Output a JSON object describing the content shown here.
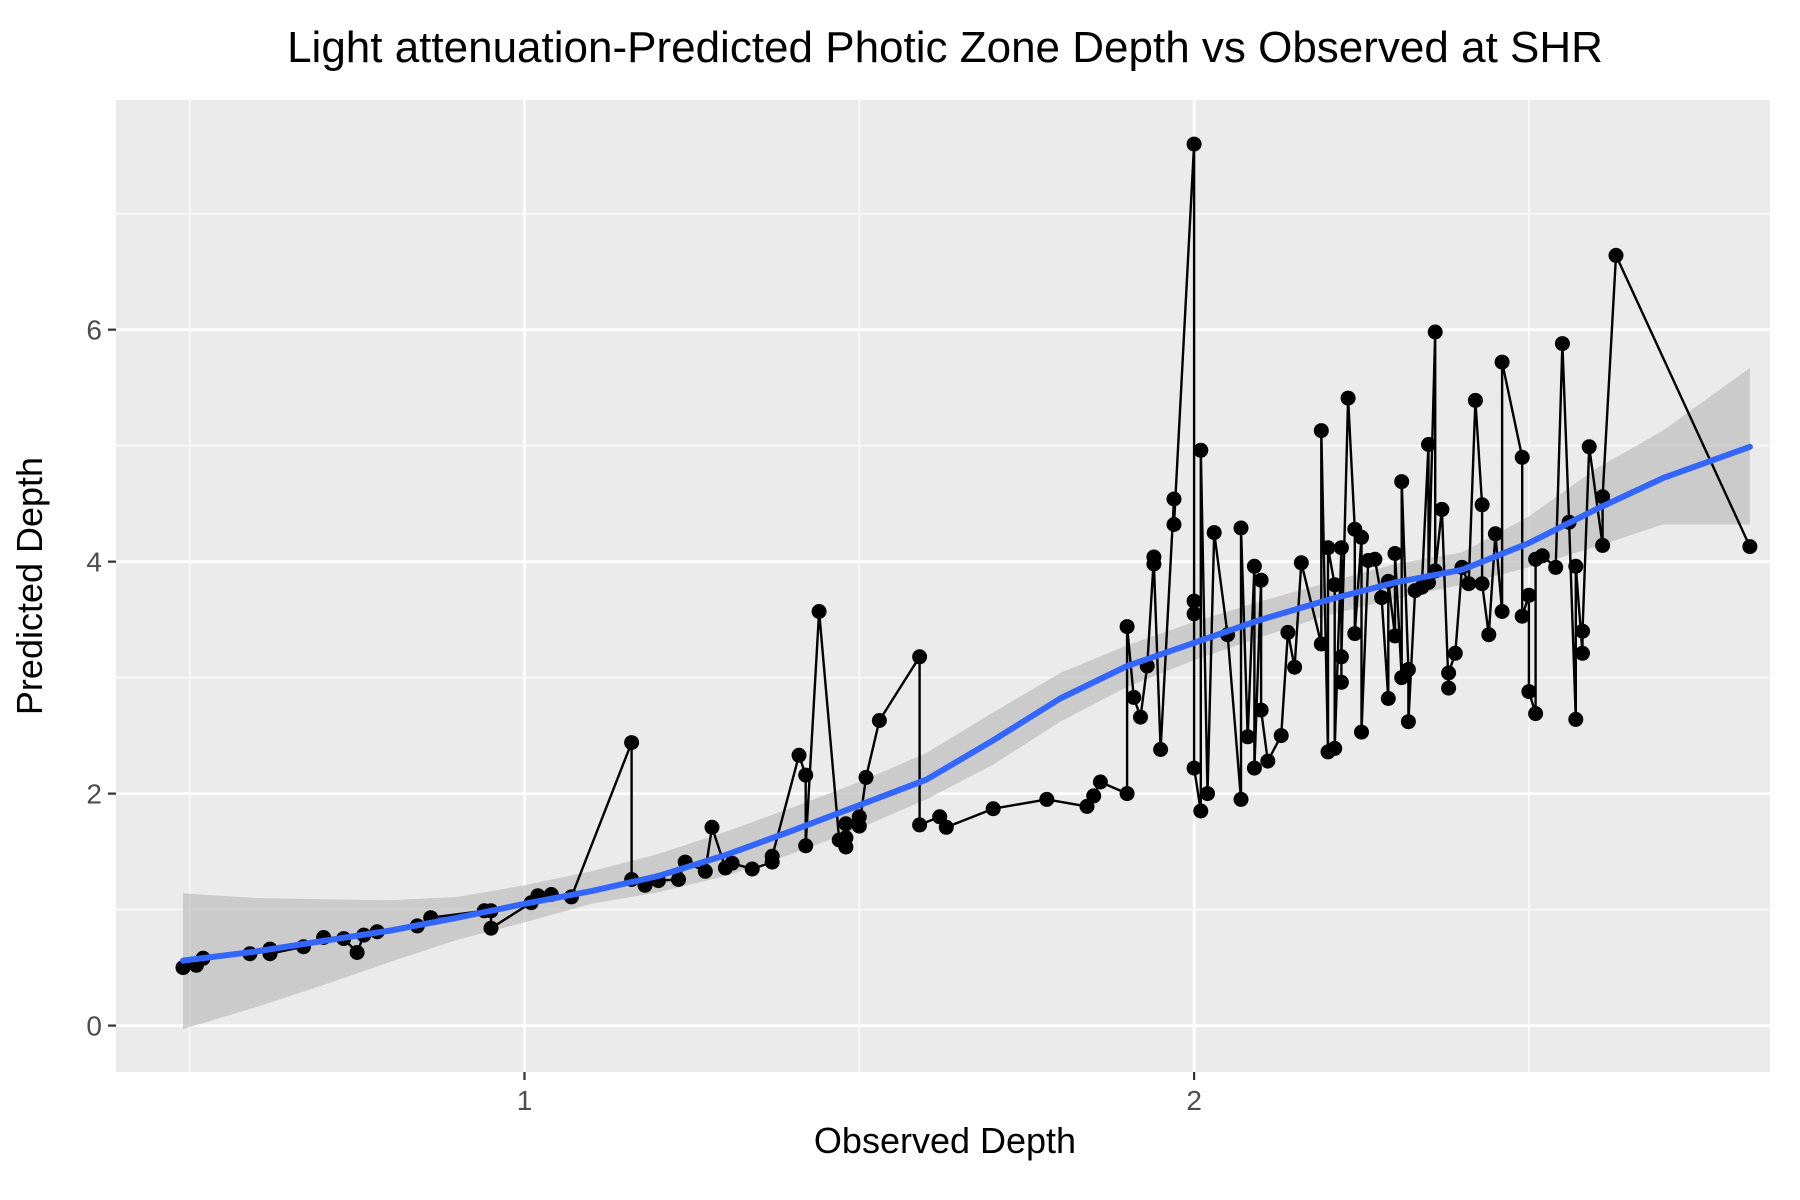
{
  "chart_data": {
    "type": "scatter",
    "title": "Light attenuation-Predicted Photic Zone Depth vs Observed at SHR",
    "xlabel": "Observed Depth",
    "ylabel": "Predicted Depth",
    "xlim": [
      0.39,
      2.86
    ],
    "ylim": [
      -0.4,
      7.98
    ],
    "x_ticks": [
      1,
      2
    ],
    "x_tick_labels": [
      "1",
      "2"
    ],
    "x_minor_ticks": [
      0.5,
      1.5,
      2.5
    ],
    "y_ticks": [
      0,
      2,
      4,
      6
    ],
    "y_tick_labels": [
      "0",
      "2",
      "4",
      "6"
    ],
    "y_minor_ticks": [
      1,
      3,
      5,
      7
    ],
    "grid": true,
    "legend": "none",
    "colors": {
      "panel": "#ebebeb",
      "grid": "#ffffff",
      "points": "#000000",
      "smooth": "#3366ff",
      "ribbon": "#bdbdbd"
    },
    "series": [
      {
        "mode": "points+line",
        "x": [
          0.49,
          0.51,
          0.52,
          0.59,
          0.62,
          0.62,
          0.67,
          0.7,
          0.73,
          0.75,
          0.76,
          0.78,
          0.84,
          0.86,
          0.94,
          0.95,
          0.95,
          1.01,
          1.02,
          1.04,
          1.07,
          1.16,
          1.16,
          1.18,
          1.2,
          1.23,
          1.24,
          1.27,
          1.28,
          1.3,
          1.31,
          1.34,
          1.37,
          1.37,
          1.41,
          1.42,
          1.42,
          1.44,
          1.47,
          1.48,
          1.48,
          1.48,
          1.5,
          1.5,
          1.51,
          1.53,
          1.59,
          1.59,
          1.62,
          1.63,
          1.7,
          1.78,
          1.84,
          1.85,
          1.86,
          1.9,
          1.9,
          1.91,
          1.92,
          1.93,
          1.94,
          1.94,
          1.95,
          1.97,
          1.97,
          2.0,
          2.0,
          2.0,
          2.0,
          2.01,
          2.01,
          2.02,
          2.03,
          2.05,
          2.07,
          2.07,
          2.08,
          2.09,
          2.09,
          2.1,
          2.1,
          2.11,
          2.13,
          2.14,
          2.15,
          2.16,
          2.19,
          2.19,
          2.2,
          2.2,
          2.21,
          2.21,
          2.22,
          2.22,
          2.22,
          2.23,
          2.24,
          2.24,
          2.25,
          2.25,
          2.26,
          2.27,
          2.28,
          2.29,
          2.29,
          2.3,
          2.3,
          2.31,
          2.31,
          2.32,
          2.32,
          2.33,
          2.34,
          2.35,
          2.35,
          2.36,
          2.36,
          2.37,
          2.38,
          2.38,
          2.39,
          2.4,
          2.41,
          2.42,
          2.43,
          2.43,
          2.44,
          2.45,
          2.46,
          2.46,
          2.49,
          2.49,
          2.5,
          2.5,
          2.51,
          2.51,
          2.52,
          2.54,
          2.55,
          2.56,
          2.57,
          2.57,
          2.58,
          2.58,
          2.59,
          2.61,
          2.61,
          2.63,
          2.83
        ],
        "y": [
          0.5,
          0.52,
          0.58,
          0.62,
          0.66,
          0.62,
          0.68,
          0.76,
          0.75,
          0.63,
          0.78,
          0.81,
          0.86,
          0.93,
          0.99,
          0.99,
          0.84,
          1.06,
          1.12,
          1.13,
          1.11,
          2.44,
          1.26,
          1.21,
          1.25,
          1.26,
          1.41,
          1.33,
          1.71,
          1.36,
          1.4,
          1.35,
          1.41,
          1.46,
          2.33,
          2.16,
          1.55,
          3.57,
          1.6,
          1.54,
          1.62,
          1.74,
          1.8,
          1.72,
          2.14,
          2.63,
          3.18,
          1.73,
          1.8,
          1.71,
          1.87,
          1.95,
          1.89,
          1.98,
          2.1,
          2.0,
          3.44,
          2.83,
          2.66,
          3.1,
          4.04,
          3.98,
          2.38,
          4.54,
          4.32,
          7.6,
          3.66,
          3.55,
          2.22,
          1.85,
          4.96,
          2.0,
          4.25,
          3.37,
          1.95,
          4.29,
          2.49,
          3.96,
          2.22,
          3.84,
          2.72,
          2.28,
          2.5,
          3.39,
          3.09,
          3.99,
          3.29,
          5.13,
          2.36,
          4.12,
          3.8,
          2.39,
          4.12,
          2.96,
          3.18,
          5.41,
          4.28,
          3.38,
          4.21,
          2.53,
          4.01,
          4.02,
          3.69,
          2.82,
          3.83,
          3.36,
          4.07,
          3.0,
          4.69,
          3.07,
          2.62,
          3.75,
          3.78,
          5.01,
          3.82,
          5.98,
          3.92,
          4.45,
          2.91,
          3.04,
          3.21,
          3.95,
          3.81,
          5.39,
          4.49,
          3.81,
          3.37,
          4.24,
          3.57,
          5.72,
          4.9,
          3.53,
          3.71,
          2.88,
          2.69,
          4.02,
          4.05,
          3.95,
          5.88,
          4.34,
          2.64,
          3.96,
          3.21,
          3.4,
          4.99,
          4.14,
          4.56,
          6.64,
          4.13
        ]
      },
      {
        "name": "",
        "mode": "smooth",
        "x": [
          0.49,
          0.6,
          0.7,
          0.8,
          0.9,
          1.0,
          1.1,
          1.2,
          1.3,
          1.4,
          1.5,
          1.6,
          1.7,
          1.8,
          1.9,
          2.0,
          2.1,
          2.2,
          2.3,
          2.4,
          2.5,
          2.6,
          2.7,
          2.83
        ],
        "y": [
          0.56,
          0.64,
          0.73,
          0.82,
          0.93,
          1.05,
          1.16,
          1.29,
          1.47,
          1.68,
          1.9,
          2.12,
          2.46,
          2.82,
          3.1,
          3.3,
          3.5,
          3.67,
          3.82,
          3.93,
          4.16,
          4.45,
          4.72,
          4.99
        ],
        "ymin": [
          -0.03,
          0.16,
          0.35,
          0.55,
          0.74,
          0.89,
          1.05,
          1.15,
          1.29,
          1.48,
          1.7,
          1.95,
          2.25,
          2.62,
          2.92,
          3.15,
          3.35,
          3.54,
          3.68,
          3.8,
          3.95,
          4.13,
          4.32,
          4.32
        ],
        "ymax": [
          1.14,
          1.1,
          1.09,
          1.08,
          1.11,
          1.21,
          1.33,
          1.48,
          1.67,
          1.88,
          2.1,
          2.35,
          2.7,
          3.04,
          3.28,
          3.48,
          3.66,
          3.82,
          3.98,
          4.08,
          4.39,
          4.8,
          5.13,
          5.67
        ]
      }
    ]
  }
}
